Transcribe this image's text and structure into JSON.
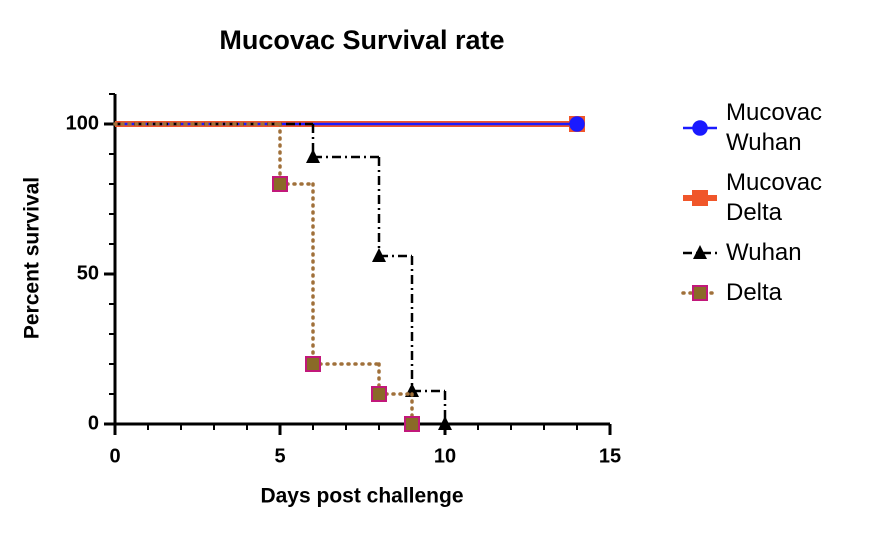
{
  "chart_data": {
    "type": "step",
    "title": "Mucovac Survival rate",
    "x_label": "Days post challenge",
    "y_label": "Percent survival",
    "xlim": [
      0,
      15
    ],
    "xticks": [
      0,
      5,
      10,
      15
    ],
    "ylim": [
      0,
      110
    ],
    "yticks": [
      0,
      50,
      100
    ],
    "legend": "right",
    "series": [
      {
        "name": "Mucovac Wuhan",
        "color": "#1a1aff",
        "marker": "circle",
        "line": "solid",
        "x": [
          0,
          14
        ],
        "values": [
          100,
          100
        ]
      },
      {
        "name": "Mucovac Delta",
        "color": "#f0562a",
        "marker": "square",
        "line": "thick",
        "x": [
          0,
          14
        ],
        "values": [
          100,
          100
        ]
      },
      {
        "name": "Wuhan",
        "color": "#000000",
        "marker": "triangle",
        "line": "dashdot",
        "x": [
          0,
          6,
          8,
          9,
          10
        ],
        "values": [
          100,
          89,
          56,
          11,
          0
        ]
      },
      {
        "name": "Delta",
        "color": "#a0703a",
        "edge_color": "#c2187a",
        "marker_color": "#8a6a28",
        "marker": "square",
        "line": "dot",
        "x": [
          0,
          5,
          6,
          8,
          9
        ],
        "values": [
          100,
          80,
          20,
          10,
          0
        ]
      }
    ]
  }
}
